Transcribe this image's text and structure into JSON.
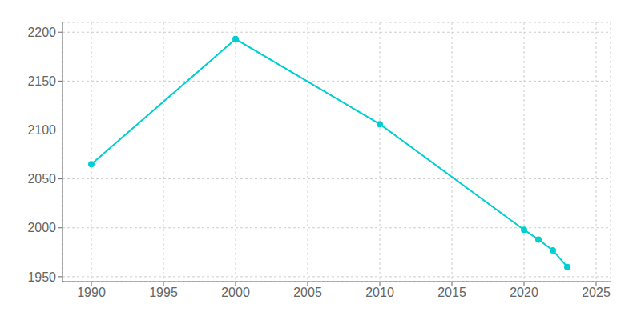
{
  "chart_data": {
    "type": "line",
    "x": [
      1990,
      2000,
      2010,
      2020,
      2021,
      2022,
      2023
    ],
    "values": [
      2065,
      2193,
      2106,
      1998,
      1988,
      1977,
      1960
    ],
    "color": "#00CED1",
    "marker": "circle",
    "xlim": [
      1988,
      2026
    ],
    "ylim": [
      1945,
      2210
    ],
    "xticks": [
      1990,
      1995,
      2000,
      2005,
      2010,
      2015,
      2020,
      2025
    ],
    "yticks": [
      1950,
      2000,
      2050,
      2100,
      2150,
      2200
    ],
    "grid": true
  }
}
